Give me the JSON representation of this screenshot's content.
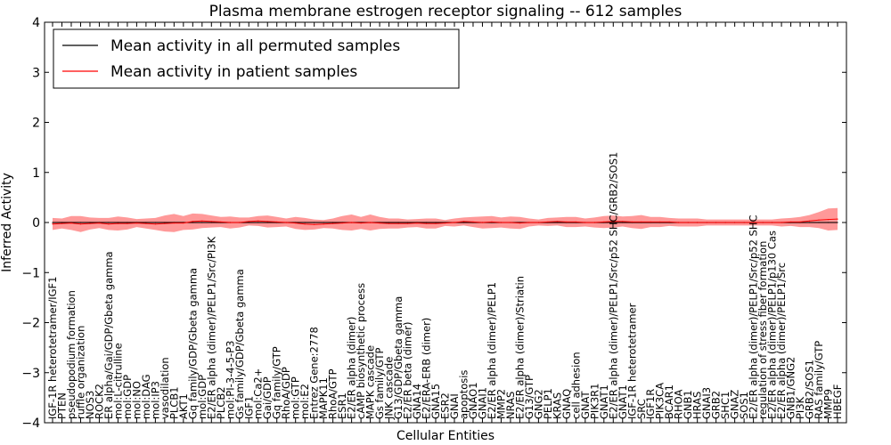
{
  "chart_data": {
    "type": "line",
    "title": "Plasma membrane estrogen receptor signaling -- 612 samples",
    "xlabel": "Cellular Entities",
    "ylabel": "Inferred Activity",
    "ylim": [
      -4,
      4
    ],
    "yticks": [
      "4",
      "3",
      "2",
      "1",
      "0",
      "−1",
      "−2",
      "−3",
      "−4"
    ],
    "grid": false,
    "legend_position": "top-left",
    "categories": [
      "IGF-1R heterotetramer/IGF1",
      "PTEN",
      "pseudopodium formation",
      "ruffle organization",
      "NOS3",
      "ROCK2",
      "ER alpha/Gai/GDP/Gbeta gamma",
      "mol:L-citrulline",
      "mol:GDP",
      "mol:NO",
      "mol:DAG",
      "mol:IP3",
      "vasodilation",
      "PLCB1",
      "AKT1",
      "Gq family/GDP/Gbeta gamma",
      "mol:GDP",
      "E2/ER alpha (dimer)/PELP1/Src/PI3K",
      "PLCB2",
      "mol:PI-3-4-5-P3",
      "Gs family/GDP/Gbeta gamma",
      "IGF1",
      "mol:Ca2+",
      "Gai/GDP",
      "Gq family/GTP",
      "RhoA/GDP",
      "mol:GTP",
      "mol:E2",
      "Entrez Gene:2778",
      "MAPK11",
      "RhoA/GTP",
      "ESR1",
      "E2/ER alpha (dimer)",
      "cAMP biosynthetic process",
      "MAPK cascade",
      "Gs family/GTP",
      "JNK cascade",
      "G13/GDP/Gbeta gamma",
      "E2/ER beta (dimer)",
      "GNA14",
      "E2/ERA-ERB (dimer)",
      "GNA15",
      "ESR2",
      "GNAI",
      "apoptosis",
      "GNAO1",
      "GNAI1",
      "E2/ER alpha (dimer)/PELP1",
      "MMP2",
      "NRAS",
      "E2/ER alpha (dimer)/Striatin",
      "G13/GTP",
      "GNG2",
      "PELP1",
      "KRAS",
      "GNAQ",
      "cell adhesion",
      "GNAT",
      "PIK3R1",
      "GNAT1",
      "E2/ER alpha (dimer)/PELP1/Src/p52 SHC/GRB2/SOS1",
      "GNAT1",
      "IGF-1R heterotetramer",
      "SRC",
      "IGF1R",
      "PIK3CA",
      "BCAR1",
      "RHOA",
      "GNB1",
      "HRAS",
      "GNAI3",
      "GRB2",
      "SHC1",
      "GNAZ",
      "SOS1",
      "E2/ER alpha (dimer)/PELP1/Src/p52 SHC",
      "regulation of stress fiber formation",
      "E2/ER alpha (dimer)/PELP1/p130 Cas",
      "E2/ER alpha (dimer)/PELP1/Src",
      "GNB1/GNG2",
      "PI3K",
      "GRB2/SOS1",
      "RAS family/GTP",
      "MMP9",
      "HBEGF"
    ],
    "series": [
      {
        "name": "Mean activity in all permuted samples",
        "color": "#000000",
        "values": [
          0,
          0,
          0,
          0,
          0,
          0,
          0,
          0,
          0,
          0,
          0,
          0,
          0,
          0,
          0,
          0,
          0,
          0,
          0,
          0,
          0,
          0,
          0,
          0,
          0,
          0,
          0,
          0,
          0,
          0,
          0,
          0,
          0,
          0,
          0,
          0,
          0,
          0,
          0,
          0,
          0,
          0,
          0,
          0,
          0,
          0,
          0,
          0,
          0,
          0,
          0,
          0,
          0,
          0,
          0,
          0,
          0,
          0,
          0,
          0,
          0,
          0,
          0,
          0,
          0,
          0,
          0,
          0,
          0,
          0,
          0,
          0,
          0,
          0,
          0,
          0,
          0,
          0,
          0,
          0,
          0,
          0,
          0,
          0,
          0
        ],
        "band": 0.02,
        "band_color": "#bbbbbb"
      },
      {
        "name": "Mean activity in patient samples",
        "color": "#ff0000",
        "values": [
          -0.03,
          -0.02,
          -0.01,
          -0.03,
          -0.02,
          -0.01,
          -0.03,
          -0.02,
          -0.02,
          -0.01,
          -0.02,
          -0.03,
          -0.02,
          -0.01,
          -0.01,
          0.02,
          0.03,
          0.02,
          0.01,
          0.0,
          0.0,
          0.02,
          0.03,
          0.02,
          0.01,
          0.0,
          -0.01,
          -0.03,
          -0.04,
          -0.03,
          -0.02,
          -0.01,
          0.0,
          -0.01,
          0.0,
          -0.01,
          -0.02,
          -0.02,
          -0.02,
          -0.01,
          -0.02,
          -0.02,
          -0.01,
          0.0,
          0.02,
          0.01,
          0.0,
          0.01,
          0.0,
          0.0,
          -0.01,
          0.0,
          0.0,
          0.01,
          0.02,
          0.01,
          0.01,
          0.0,
          0.0,
          0.01,
          0.02,
          0.02,
          0.01,
          0.01,
          0.01,
          0.01,
          0.01,
          0.0,
          0.0,
          0.0,
          0.0,
          0.0,
          0.0,
          0.0,
          0.0,
          0.0,
          0.0,
          0.0,
          0.0,
          0.01,
          0.01,
          0.03,
          0.05,
          0.06,
          0.07
        ],
        "band": [
          0.12,
          0.1,
          0.14,
          0.16,
          0.12,
          0.1,
          0.12,
          0.14,
          0.12,
          0.08,
          0.1,
          0.12,
          0.16,
          0.18,
          0.14,
          0.16,
          0.14,
          0.12,
          0.1,
          0.12,
          0.1,
          0.08,
          0.1,
          0.12,
          0.1,
          0.08,
          0.12,
          0.12,
          0.1,
          0.08,
          0.1,
          0.14,
          0.16,
          0.12,
          0.16,
          0.12,
          0.1,
          0.1,
          0.08,
          0.08,
          0.1,
          0.1,
          0.06,
          0.08,
          0.08,
          0.1,
          0.12,
          0.12,
          0.1,
          0.12,
          0.12,
          0.08,
          0.06,
          0.08,
          0.08,
          0.1,
          0.1,
          0.08,
          0.1,
          0.12,
          0.12,
          0.1,
          0.12,
          0.14,
          0.1,
          0.1,
          0.08,
          0.08,
          0.08,
          0.08,
          0.06,
          0.06,
          0.06,
          0.06,
          0.06,
          0.06,
          0.06,
          0.06,
          0.08,
          0.08,
          0.1,
          0.12,
          0.16,
          0.22,
          0.22
        ],
        "band_color": "#ff0000"
      }
    ]
  }
}
